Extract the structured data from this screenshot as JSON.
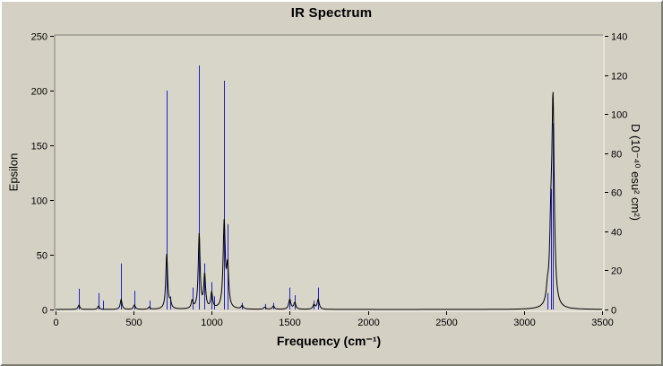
{
  "window": {
    "background_color": "#d4d0c3",
    "plot_background_color": "#d8d5c9"
  },
  "chart_data": {
    "type": "line",
    "title": "IR Spectrum",
    "xlabel": "Frequency (cm⁻¹)",
    "ylabel_left": "Epsilon",
    "ylabel_right": "D (10⁻⁴⁰ esu² cm²)",
    "xlim": [
      0,
      3500
    ],
    "ylim_left": [
      0,
      250
    ],
    "ylim_right": [
      0,
      140
    ],
    "x_ticks": [
      0,
      500,
      1000,
      1500,
      2000,
      2500,
      3000,
      3500
    ],
    "y_ticks_left": [
      0,
      50,
      100,
      150,
      200,
      250
    ],
    "y_ticks_right": [
      0,
      20,
      40,
      60,
      80,
      100,
      120,
      140
    ],
    "grid": false,
    "legend": null,
    "series": [
      {
        "name": "stick-spectrum",
        "type": "stick",
        "color": "#2222c2",
        "axis": "left",
        "points": [
          [
            150,
            19
          ],
          [
            275,
            15
          ],
          [
            303,
            8
          ],
          [
            420,
            42
          ],
          [
            505,
            17
          ],
          [
            600,
            8
          ],
          [
            710,
            200
          ],
          [
            735,
            12
          ],
          [
            875,
            20
          ],
          [
            920,
            223
          ],
          [
            955,
            42
          ],
          [
            1000,
            25
          ],
          [
            1015,
            12
          ],
          [
            1080,
            209
          ],
          [
            1100,
            78
          ],
          [
            1195,
            6
          ],
          [
            1340,
            5
          ],
          [
            1395,
            6
          ],
          [
            1500,
            20
          ],
          [
            1532,
            13
          ],
          [
            1655,
            8
          ],
          [
            1682,
            20
          ],
          [
            3150,
            15
          ],
          [
            3174,
            110
          ],
          [
            3186,
            170
          ]
        ]
      },
      {
        "name": "broadened-spectrum",
        "type": "lorentzian-sum",
        "color": "#000000",
        "axis": "left",
        "peaks": [
          [
            150,
            4,
            7
          ],
          [
            275,
            3,
            7
          ],
          [
            420,
            9,
            7
          ],
          [
            505,
            4,
            7
          ],
          [
            600,
            2,
            7
          ],
          [
            712,
            50,
            7
          ],
          [
            735,
            6,
            7
          ],
          [
            875,
            7,
            7
          ],
          [
            920,
            68,
            7
          ],
          [
            955,
            30,
            7
          ],
          [
            1000,
            14,
            7
          ],
          [
            1080,
            78,
            8
          ],
          [
            1102,
            36,
            8
          ],
          [
            1195,
            3,
            8
          ],
          [
            1340,
            2,
            8
          ],
          [
            1395,
            3,
            8
          ],
          [
            1500,
            9,
            8
          ],
          [
            1532,
            6,
            8
          ],
          [
            1655,
            4,
            8
          ],
          [
            1682,
            9,
            8
          ],
          [
            3150,
            12,
            9
          ],
          [
            3172,
            55,
            9
          ],
          [
            3186,
            182,
            9
          ]
        ]
      }
    ]
  }
}
